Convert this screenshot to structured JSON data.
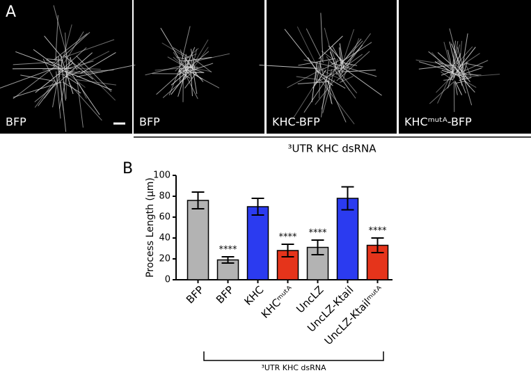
{
  "panel_a": {
    "letter": "A",
    "image_labels": [
      "BFP",
      "BFP",
      "KHC-BFP",
      "KHCᵐᵘᵗᴬ-BFP"
    ],
    "bracket_label": "³UTR KHC dsRNA"
  },
  "chart_data": {
    "type": "bar",
    "letter": "B",
    "ylabel": "Process Length (µm)",
    "categories": [
      "BFP",
      "BFP",
      "KHC",
      "KHCᵐᵘᵗᴬ",
      "UncLZ",
      "UncLZ-Ktail",
      "UncLZ-Ktailᵐᵘᵗᴬ"
    ],
    "values": [
      76,
      19,
      70,
      28,
      31,
      78,
      33
    ],
    "errors": [
      8,
      3,
      8,
      6,
      7,
      11,
      7
    ],
    "colors": [
      "#b3b3b3",
      "#b3b3b3",
      "#2b3bf0",
      "#e5341b",
      "#b3b3b3",
      "#2b3bf0",
      "#e5341b"
    ],
    "annotations": [
      null,
      "****",
      null,
      "****",
      "****",
      null,
      "****"
    ],
    "ylim": [
      0,
      100
    ],
    "yticks": [
      0,
      20,
      40,
      60,
      80,
      100
    ],
    "bracket_label": "³UTR KHC dsRNA"
  }
}
